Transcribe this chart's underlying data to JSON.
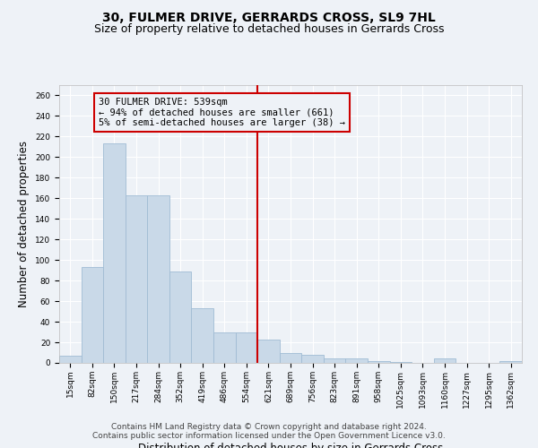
{
  "title": "30, FULMER DRIVE, GERRARDS CROSS, SL9 7HL",
  "subtitle": "Size of property relative to detached houses in Gerrards Cross",
  "xlabel": "Distribution of detached houses by size in Gerrards Cross",
  "ylabel": "Number of detached properties",
  "bin_labels": [
    "15sqm",
    "82sqm",
    "150sqm",
    "217sqm",
    "284sqm",
    "352sqm",
    "419sqm",
    "486sqm",
    "554sqm",
    "621sqm",
    "689sqm",
    "756sqm",
    "823sqm",
    "891sqm",
    "958sqm",
    "1025sqm",
    "1093sqm",
    "1160sqm",
    "1227sqm",
    "1295sqm",
    "1362sqm"
  ],
  "bar_heights": [
    7,
    93,
    213,
    163,
    163,
    89,
    53,
    30,
    30,
    23,
    10,
    8,
    4,
    4,
    2,
    1,
    0,
    4,
    0,
    0,
    2
  ],
  "bar_color": "#c9d9e8",
  "bar_edgecolor": "#a0bcd4",
  "vline_x": 8.48,
  "vline_color": "#cc0000",
  "annotation_text": "30 FULMER DRIVE: 539sqm\n← 94% of detached houses are smaller (661)\n5% of semi-detached houses are larger (38) →",
  "annotation_box_color": "#cc0000",
  "ylim": [
    0,
    270
  ],
  "yticks": [
    0,
    20,
    40,
    60,
    80,
    100,
    120,
    140,
    160,
    180,
    200,
    220,
    240,
    260
  ],
  "footer1": "Contains HM Land Registry data © Crown copyright and database right 2024.",
  "footer2": "Contains public sector information licensed under the Open Government Licence v3.0.",
  "background_color": "#eef2f7",
  "grid_color": "#ffffff",
  "title_fontsize": 10,
  "subtitle_fontsize": 9,
  "xlabel_fontsize": 8.5,
  "ylabel_fontsize": 8.5,
  "tick_fontsize": 6.5,
  "annotation_fontsize": 7.5,
  "footer_fontsize": 6.5
}
